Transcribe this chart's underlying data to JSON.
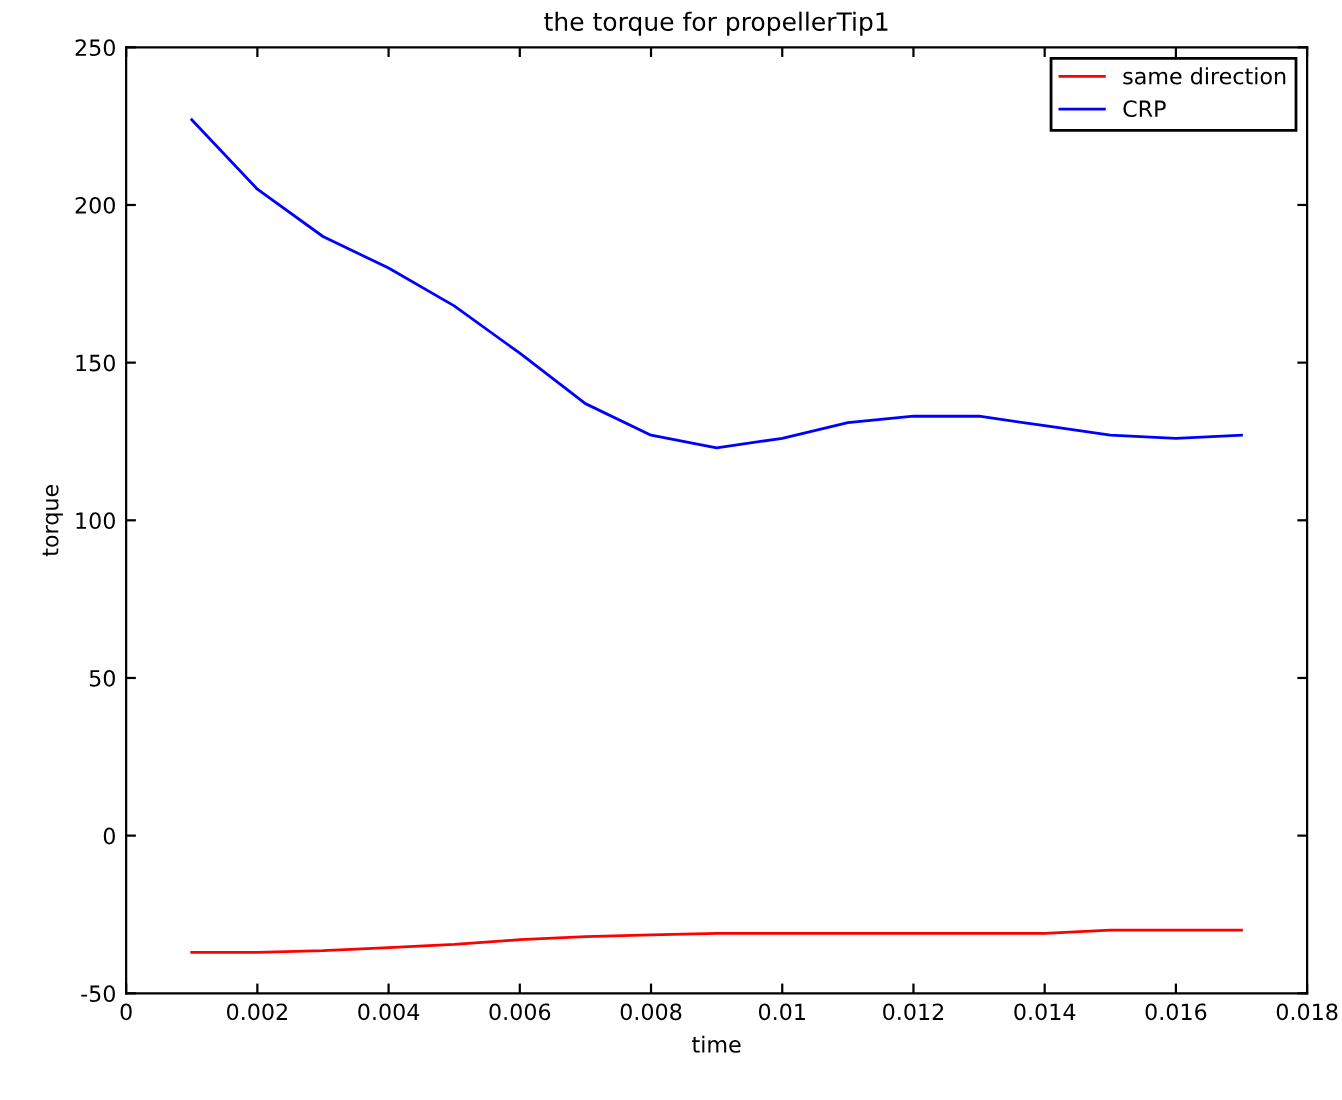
{
  "chart_data": {
    "type": "line",
    "title": "the torque for propellerTip1",
    "xlabel": "time",
    "ylabel": "torque",
    "x": [
      0.001,
      0.002,
      0.003,
      0.004,
      0.005,
      0.006,
      0.007,
      0.008,
      0.009,
      0.01,
      0.011,
      0.012,
      0.013,
      0.014,
      0.015,
      0.016,
      0.017
    ],
    "series": [
      {
        "name": "same direction",
        "color": "#ff0000",
        "values": [
          -37,
          -37,
          -36.5,
          -35.5,
          -34.5,
          -33,
          -32,
          -31.5,
          -31,
          -31,
          -31,
          -31,
          -31,
          -31,
          -30,
          -30,
          -30
        ]
      },
      {
        "name": "CRP",
        "color": "#0000ff",
        "values": [
          227,
          205,
          190,
          180,
          168,
          153,
          137,
          127,
          123,
          126,
          131,
          133,
          133,
          130,
          127,
          126,
          127
        ]
      }
    ],
    "xlim": [
      0,
      0.018
    ],
    "xticks": [
      0,
      0.002,
      0.004,
      0.006,
      0.008,
      0.01,
      0.012,
      0.014,
      0.016,
      0.018
    ],
    "ylim": [
      -50,
      250
    ],
    "yticks": [
      -50,
      0,
      50,
      100,
      150,
      200,
      250
    ],
    "grid": false,
    "legend": "top right",
    "marker": "none",
    "line_style": "solid"
  }
}
